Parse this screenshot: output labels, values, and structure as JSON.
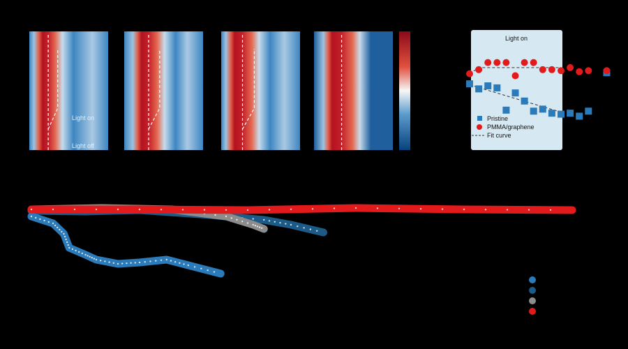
{
  "colors": {
    "red": "#e31a1c",
    "blue": "#2b7bba",
    "dark_blue": "#1c5a87",
    "gray": "#8c8c8c",
    "panel_bg": "#d6e8f1"
  },
  "heatmaps": {
    "panels": [
      {
        "annotations": [
          "Light on",
          "Light off"
        ],
        "band": [
          0.12,
          0.36
        ]
      },
      {
        "annotations": [],
        "band": [
          0.17,
          0.45
        ]
      },
      {
        "annotations": [],
        "band": [
          0.12,
          0.42
        ]
      },
      {
        "annotations": [],
        "band": [
          0.18,
          0.52
        ]
      }
    ],
    "colormap": "blue-white-red"
  },
  "chart_data": [
    {
      "type": "scatter",
      "title": "Light on",
      "legend": [
        "Pristine",
        "PMMA/graphene",
        "Fit curve"
      ],
      "legend_placement": "bottom-left",
      "series": [
        {
          "name": "Pristine",
          "marker": "square",
          "x": [
            0,
            1,
            2,
            3,
            4,
            5,
            6,
            7,
            8,
            9,
            10,
            11,
            12,
            13,
            15
          ],
          "y": [
            0.62,
            0.57,
            0.6,
            0.58,
            0.36,
            0.53,
            0.45,
            0.35,
            0.37,
            0.33,
            0.32,
            0.33,
            0.3,
            0.35,
            0.73
          ]
        },
        {
          "name": "PMMA/graphene",
          "marker": "circle",
          "x": [
            0,
            1,
            2,
            3,
            4,
            5,
            6,
            7,
            8,
            9,
            10,
            11,
            12,
            13,
            15
          ],
          "y": [
            0.72,
            0.76,
            0.83,
            0.83,
            0.83,
            0.7,
            0.83,
            0.83,
            0.76,
            0.76,
            0.75,
            0.78,
            0.74,
            0.75,
            0.75
          ]
        }
      ],
      "fit": {
        "Pristine": [
          [
            0,
            0.61
          ],
          [
            10,
            0.34
          ]
        ],
        "PMMA/graphene": [
          [
            0,
            0.72
          ],
          [
            1,
            0.78
          ],
          [
            10,
            0.78
          ]
        ]
      }
    },
    {
      "type": "scatter",
      "series": [
        {
          "x": [
            0,
            4,
            6,
            7,
            10,
            12,
            16,
            20,
            25,
            29,
            35
          ],
          "y": [
            0.9,
            0.8,
            0.65,
            0.45,
            0.35,
            0.28,
            0.22,
            0.24,
            0.28,
            0.2,
            0.08
          ]
        },
        {
          "x": [
            0,
            10,
            20,
            33,
            43,
            48,
            54
          ],
          "y": [
            0.98,
            0.97,
            0.99,
            0.92,
            0.85,
            0.78,
            0.67
          ]
        },
        {
          "x": [
            0,
            13,
            26,
            36,
            41,
            43
          ],
          "y": [
            1.0,
            1.02,
            1.0,
            0.9,
            0.78,
            0.72
          ]
        },
        {
          "x": [
            0,
            20,
            40,
            60,
            80,
            100
          ],
          "y": [
            1.0,
            1.0,
            0.99,
            1.02,
            1.0,
            0.99
          ]
        }
      ],
      "legend_placement": "bottom-right"
    }
  ]
}
